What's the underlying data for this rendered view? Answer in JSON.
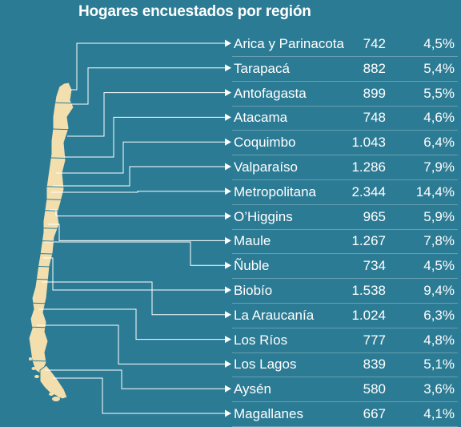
{
  "title": "Hogares encuestados por región",
  "colors": {
    "background": "#2c7b94",
    "map_fill": "#f3dfae",
    "map_stroke": "#2c7b94",
    "text": "#ffffff",
    "connector": "#ffffff"
  },
  "regions": [
    {
      "name": "Arica y Parinacota",
      "count": "742",
      "percent": "4,5%"
    },
    {
      "name": "Tarapacá",
      "count": "882",
      "percent": "5,4%"
    },
    {
      "name": "Antofagasta",
      "count": "899",
      "percent": "5,5%"
    },
    {
      "name": "Atacama",
      "count": "748",
      "percent": "4,6%"
    },
    {
      "name": "Coquimbo",
      "count": "1.043",
      "percent": "6,4%"
    },
    {
      "name": "Valparaíso",
      "count": "1.286",
      "percent": "7,9%"
    },
    {
      "name": "Metropolitana",
      "count": "2.344",
      "percent": "14,4%"
    },
    {
      "name": "O’Higgins",
      "count": "965",
      "percent": "5,9%"
    },
    {
      "name": "Maule",
      "count": "1.267",
      "percent": "7,8%"
    },
    {
      "name": "Ñuble",
      "count": "734",
      "percent": "4,5%"
    },
    {
      "name": "Biobío",
      "count": "1.538",
      "percent": "9,4%"
    },
    {
      "name": "La Araucanía",
      "count": "1.024",
      "percent": "6,3%"
    },
    {
      "name": "Los Ríos",
      "count": "777",
      "percent": "4,8%"
    },
    {
      "name": "Los Lagos",
      "count": "839",
      "percent": "5,1%"
    },
    {
      "name": "Aysén",
      "count": "580",
      "percent": "3,6%"
    },
    {
      "name": "Magallanes",
      "count": "667",
      "percent": "4,1%"
    }
  ]
}
